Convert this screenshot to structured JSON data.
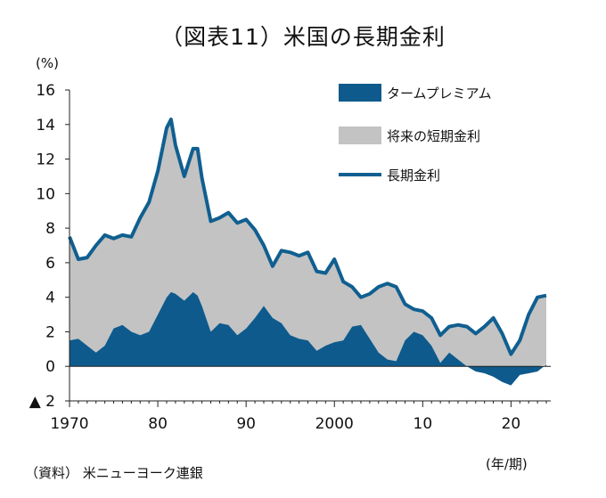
{
  "title": "（図表11）米国の長期金利",
  "y_unit": "(%)",
  "x_unit": "(年/期)",
  "source": "（資料） 米ニューヨーク連銀",
  "colors": {
    "term_premium": "#0e5a8c",
    "future_short": "#c3c3c3",
    "long_rate": "#105f90"
  },
  "chart_data": {
    "type": "area",
    "title": "（図表11）米国の長期金利",
    "xlabel": "",
    "ylabel": "(%)",
    "xlim": [
      1970,
      2024.5
    ],
    "ylim": [
      -2,
      16
    ],
    "grid": false,
    "legend_position": "top-right",
    "x_tick_labels": [
      {
        "x": 1970,
        "label": "1970"
      },
      {
        "x": 1980,
        "label": "80"
      },
      {
        "x": 1990,
        "label": "90"
      },
      {
        "x": 2000,
        "label": "2000"
      },
      {
        "x": 2010,
        "label": "10"
      },
      {
        "x": 2020,
        "label": "20"
      }
    ],
    "y_tick_labels": [
      {
        "y": 16,
        "label": "16"
      },
      {
        "y": 14,
        "label": "14"
      },
      {
        "y": 12,
        "label": "12"
      },
      {
        "y": 10,
        "label": "10"
      },
      {
        "y": 8,
        "label": "8"
      },
      {
        "y": 6,
        "label": "6"
      },
      {
        "y": 4,
        "label": "4"
      },
      {
        "y": 2,
        "label": "2"
      },
      {
        "y": 0,
        "label": "0"
      },
      {
        "y": -2,
        "label": "▲ 2"
      }
    ],
    "x": [
      1970,
      1971,
      1972,
      1973,
      1974,
      1975,
      1976,
      1977,
      1978,
      1979,
      1980,
      1981,
      1981.5,
      1982,
      1983,
      1984,
      1984.5,
      1985,
      1986,
      1987,
      1988,
      1989,
      1990,
      1991,
      1992,
      1993,
      1994,
      1995,
      1996,
      1997,
      1998,
      1999,
      2000,
      2001,
      2002,
      2003,
      2004,
      2005,
      2006,
      2007,
      2008,
      2009,
      2010,
      2011,
      2012,
      2013,
      2014,
      2015,
      2016,
      2017,
      2018,
      2019,
      2020,
      2021,
      2022,
      2023,
      2024
    ],
    "series": [
      {
        "name": "タームプレミアム",
        "kind": "area",
        "values": [
          1.5,
          1.6,
          1.2,
          0.8,
          1.2,
          2.2,
          2.4,
          2.0,
          1.8,
          2.0,
          3.0,
          4.0,
          4.3,
          4.2,
          3.8,
          4.3,
          4.1,
          3.5,
          2.0,
          2.5,
          2.4,
          1.8,
          2.2,
          2.8,
          3.5,
          2.8,
          2.5,
          1.8,
          1.6,
          1.5,
          0.9,
          1.2,
          1.4,
          1.5,
          2.3,
          2.4,
          1.6,
          0.8,
          0.4,
          0.3,
          1.5,
          2.0,
          1.8,
          1.2,
          0.2,
          0.8,
          0.4,
          0.0,
          -0.3,
          -0.4,
          -0.6,
          -0.9,
          -1.1,
          -0.5,
          -0.4,
          -0.3,
          0.1
        ]
      },
      {
        "name": "将来の短期金利",
        "kind": "area",
        "values": [
          6.0,
          4.6,
          5.1,
          6.2,
          6.4,
          5.2,
          5.2,
          5.5,
          6.8,
          7.5,
          8.3,
          9.8,
          10.0,
          8.6,
          7.2,
          8.3,
          8.5,
          7.4,
          6.4,
          6.1,
          6.5,
          6.5,
          6.3,
          5.1,
          3.5,
          3.0,
          4.2,
          4.8,
          4.8,
          5.1,
          4.6,
          4.2,
          4.8,
          3.4,
          2.3,
          1.6,
          2.6,
          3.8,
          4.4,
          4.3,
          2.1,
          1.3,
          1.4,
          1.6,
          1.6,
          1.5,
          2.0,
          2.3,
          2.2,
          2.7,
          3.4,
          2.8,
          1.8,
          2.0,
          3.4,
          4.3,
          4.0
        ]
      },
      {
        "name": "長期金利",
        "kind": "line",
        "values": [
          7.5,
          6.2,
          6.3,
          7.0,
          7.6,
          7.4,
          7.6,
          7.5,
          8.6,
          9.5,
          11.3,
          13.8,
          14.3,
          12.8,
          11.0,
          12.6,
          12.6,
          10.9,
          8.4,
          8.6,
          8.9,
          8.3,
          8.5,
          7.9,
          7.0,
          5.8,
          6.7,
          6.6,
          6.4,
          6.6,
          5.5,
          5.4,
          6.2,
          4.9,
          4.6,
          4.0,
          4.2,
          4.6,
          4.8,
          4.6,
          3.6,
          3.3,
          3.2,
          2.8,
          1.8,
          2.3,
          2.4,
          2.3,
          1.9,
          2.3,
          2.8,
          1.9,
          0.7,
          1.5,
          3.0,
          4.0,
          4.1
        ]
      }
    ]
  }
}
